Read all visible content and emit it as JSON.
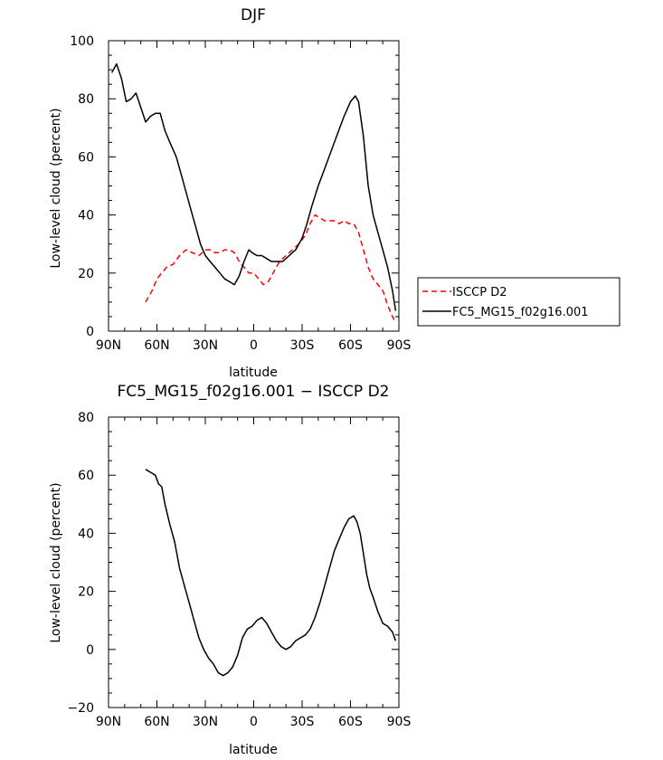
{
  "chart_data": [
    {
      "type": "line",
      "title": "DJF",
      "xlabel": "latitude",
      "ylabel": "Low-level cloud (percent)",
      "xlim": [
        -90,
        90
      ],
      "ylim": [
        0,
        100
      ],
      "xticks": [
        -90,
        -60,
        -30,
        0,
        30,
        60,
        90
      ],
      "xtick_labels": [
        "90N",
        "60N",
        "30N",
        "0",
        "30S",
        "60S",
        "90S"
      ],
      "yticks": [
        0,
        20,
        40,
        60,
        80,
        100
      ],
      "ytick_labels": [
        "0",
        "20",
        "40",
        "60",
        "80",
        "100"
      ],
      "legend": "right",
      "series": [
        {
          "name": "ISCCP D2",
          "color": "#ff0000",
          "style": "dashed",
          "x": [
            -67,
            -63,
            -60,
            -57,
            -54,
            -50,
            -46,
            -42,
            -38,
            -34,
            -30,
            -27,
            -24,
            -21,
            -18,
            -15,
            -12,
            -9,
            -6,
            -3,
            0,
            3,
            6,
            9,
            12,
            16,
            20,
            24,
            28,
            32,
            35,
            38,
            41,
            44,
            47,
            50,
            53,
            56,
            59,
            62,
            65,
            68,
            71,
            74,
            77,
            80,
            83,
            86,
            88
          ],
          "values": [
            10,
            14,
            18,
            20,
            22,
            23,
            26,
            28,
            27,
            26,
            28,
            28,
            27,
            27,
            28,
            28,
            27,
            24,
            22,
            20,
            20,
            18,
            16,
            17,
            20,
            24,
            26,
            28,
            30,
            33,
            37,
            40,
            39,
            38,
            38,
            38,
            37,
            38,
            37,
            37,
            34,
            28,
            22,
            18,
            16,
            14,
            9,
            5,
            3
          ]
        },
        {
          "name": "FC5_MG15_f02g16.001",
          "color": "#000000",
          "style": "solid",
          "x": [
            -88,
            -85,
            -82,
            -79,
            -76,
            -73,
            -70,
            -67,
            -64,
            -61,
            -58,
            -55,
            -52,
            -48,
            -45,
            -42,
            -39,
            -36,
            -33,
            -30,
            -27,
            -24,
            -21,
            -18,
            -15,
            -12,
            -9,
            -6,
            -3,
            -1,
            2,
            5,
            8,
            11,
            14,
            18,
            22,
            26,
            30,
            33,
            36,
            40,
            44,
            48,
            52,
            56,
            60,
            63,
            65,
            68,
            71,
            74,
            77,
            80,
            83,
            86,
            88
          ],
          "values": [
            89,
            92,
            87,
            79,
            80,
            82,
            77,
            72,
            74,
            75,
            75,
            69,
            65,
            60,
            54,
            48,
            42,
            36,
            30,
            26,
            24,
            22,
            20,
            18,
            17,
            16,
            19,
            24,
            28,
            27,
            26,
            26,
            25,
            24,
            24,
            24,
            26,
            28,
            32,
            37,
            43,
            50,
            56,
            62,
            68,
            74,
            79,
            81,
            79,
            67,
            50,
            40,
            34,
            28,
            22,
            14,
            7
          ]
        }
      ]
    },
    {
      "type": "line",
      "title": "FC5_MG15_f02g16.001 − ISCCP D2",
      "xlabel": "latitude",
      "ylabel": "Low-level cloud (percent)",
      "xlim": [
        -90,
        90
      ],
      "ylim": [
        -20,
        80
      ],
      "xticks": [
        -90,
        -60,
        -30,
        0,
        30,
        60,
        90
      ],
      "xtick_labels": [
        "90N",
        "60N",
        "30N",
        "0",
        "30S",
        "60S",
        "90S"
      ],
      "yticks": [
        -20,
        0,
        20,
        40,
        60,
        80
      ],
      "ytick_labels": [
        "−20",
        "0",
        "20",
        "40",
        "60",
        "80"
      ],
      "series": [
        {
          "color": "#000000",
          "style": "solid",
          "x": [
            -67,
            -64,
            -61,
            -59,
            -57,
            -55,
            -52,
            -49,
            -46,
            -43,
            -40,
            -37,
            -34,
            -31,
            -28,
            -25,
            -22,
            -19,
            -16,
            -13,
            -10,
            -7,
            -4,
            -1,
            2,
            5,
            8,
            11,
            14,
            17,
            20,
            23,
            26,
            29,
            32,
            35,
            38,
            41,
            44,
            47,
            50,
            53,
            56,
            59,
            62,
            64,
            66,
            68,
            70,
            72,
            74,
            77,
            80,
            83,
            86,
            88
          ],
          "values": [
            62,
            61,
            60,
            57,
            56,
            50,
            43,
            37,
            28,
            22,
            16,
            10,
            4,
            0,
            -3,
            -5,
            -8,
            -9,
            -8,
            -6,
            -2,
            4,
            7,
            8,
            10,
            11,
            9,
            6,
            3,
            1,
            0,
            1,
            3,
            4,
            5,
            7,
            11,
            16,
            22,
            28,
            34,
            38,
            42,
            45,
            46,
            44,
            40,
            33,
            26,
            21,
            18,
            13,
            9,
            8,
            6,
            3
          ]
        }
      ]
    }
  ]
}
